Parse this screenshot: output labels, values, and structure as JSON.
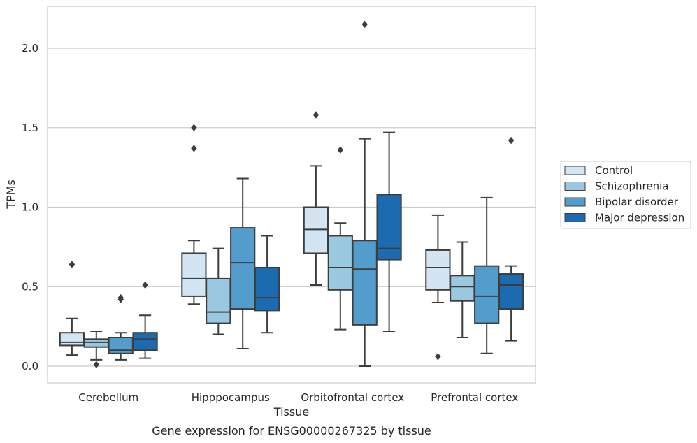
{
  "chart_data": {
    "type": "box",
    "title": "",
    "caption": "Gene expression for ENSG00000267325 by tissue",
    "xlabel": "Tissue",
    "ylabel": "TPMs",
    "ylim": [
      -0.1,
      2.27
    ],
    "yticks": [
      "0.0",
      "0.5",
      "1.0",
      "1.5",
      "2.0"
    ],
    "ytick_values": [
      0.0,
      0.5,
      1.0,
      1.5,
      2.0
    ],
    "grid": "horizontal",
    "legend_position": "right",
    "categories": [
      "Cerebellum",
      "Hipppocampus",
      "Orbitofrontal cortex",
      "Prefrontal cortex"
    ],
    "series": [
      {
        "name": "Control",
        "color": "#d3e4f3",
        "boxes": [
          {
            "whislo": 0.07,
            "q1": 0.13,
            "med": 0.15,
            "q3": 0.21,
            "whishi": 0.3,
            "fliers": [
              0.64
            ]
          },
          {
            "whislo": 0.39,
            "q1": 0.44,
            "med": 0.55,
            "q3": 0.71,
            "whishi": 0.79,
            "fliers": [
              1.37,
              1.5
            ]
          },
          {
            "whislo": 0.51,
            "q1": 0.71,
            "med": 0.86,
            "q3": 1.0,
            "whishi": 1.26,
            "fliers": [
              1.58
            ]
          },
          {
            "whislo": 0.4,
            "q1": 0.48,
            "med": 0.62,
            "q3": 0.73,
            "whishi": 0.95,
            "fliers": [
              0.06
            ]
          }
        ]
      },
      {
        "name": "Schizophrenia",
        "color": "#9ac8e0",
        "boxes": [
          {
            "whislo": 0.04,
            "q1": 0.12,
            "med": 0.15,
            "q3": 0.17,
            "whishi": 0.22,
            "fliers": [
              0.01
            ]
          },
          {
            "whislo": 0.2,
            "q1": 0.27,
            "med": 0.34,
            "q3": 0.55,
            "whishi": 0.74,
            "fliers": []
          },
          {
            "whislo": 0.23,
            "q1": 0.48,
            "med": 0.62,
            "q3": 0.82,
            "whishi": 0.9,
            "fliers": [
              1.36
            ]
          },
          {
            "whislo": 0.18,
            "q1": 0.41,
            "med": 0.5,
            "q3": 0.57,
            "whishi": 0.78,
            "fliers": []
          }
        ]
      },
      {
        "name": "Bipolar disorder",
        "color": "#529dcc",
        "boxes": [
          {
            "whislo": 0.04,
            "q1": 0.08,
            "med": 0.1,
            "q3": 0.18,
            "whishi": 0.21,
            "fliers": [
              0.42,
              0.43
            ]
          },
          {
            "whislo": 0.11,
            "q1": 0.36,
            "med": 0.65,
            "q3": 0.87,
            "whishi": 1.18,
            "fliers": []
          },
          {
            "whislo": 0.0,
            "q1": 0.26,
            "med": 0.61,
            "q3": 0.79,
            "whishi": 1.43,
            "fliers": [
              2.15
            ]
          },
          {
            "whislo": 0.08,
            "q1": 0.27,
            "med": 0.44,
            "q3": 0.63,
            "whishi": 1.06,
            "fliers": []
          }
        ]
      },
      {
        "name": "Major depression",
        "color": "#1c6aaf",
        "boxes": [
          {
            "whislo": 0.05,
            "q1": 0.1,
            "med": 0.17,
            "q3": 0.21,
            "whishi": 0.32,
            "fliers": [
              0.51
            ]
          },
          {
            "whislo": 0.21,
            "q1": 0.35,
            "med": 0.43,
            "q3": 0.62,
            "whishi": 0.82,
            "fliers": []
          },
          {
            "whislo": 0.22,
            "q1": 0.67,
            "med": 0.74,
            "q3": 1.08,
            "whishi": 1.47,
            "fliers": []
          },
          {
            "whislo": 0.16,
            "q1": 0.36,
            "med": 0.51,
            "q3": 0.58,
            "whishi": 0.63,
            "fliers": [
              1.42
            ]
          }
        ]
      }
    ]
  }
}
